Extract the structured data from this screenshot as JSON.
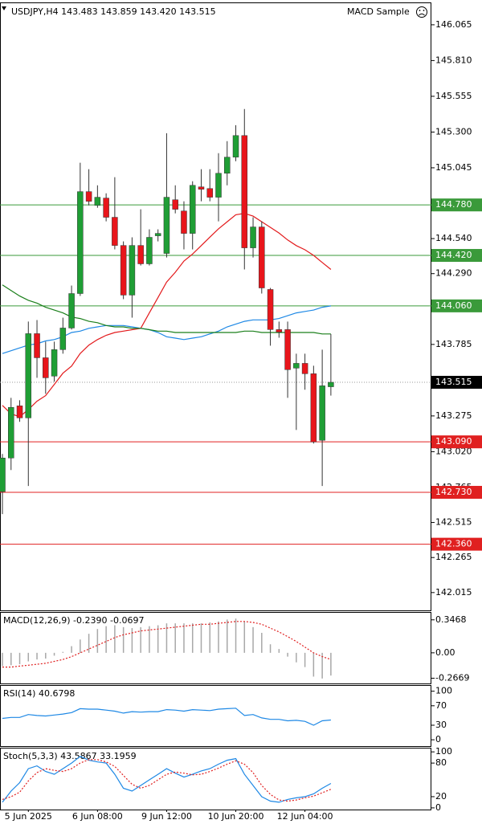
{
  "header": {
    "symbol_line": "USDJPY,H4  143.483 143.859 143.420 143.515",
    "indicator_name": "MACD Sample"
  },
  "chart_data": [
    {
      "type": "candlestick",
      "up_color": "#1f9e35",
      "down_color": "#e8151b",
      "categories": [
        null,
        null,
        null,
        "5 Jun 2025",
        null,
        null,
        null,
        null,
        null,
        null,
        null,
        "6 Jun 08:00",
        null,
        null,
        null,
        null,
        null,
        null,
        null,
        "9 Jun 12:00",
        null,
        null,
        null,
        null,
        null,
        null,
        null,
        "10 Jun 20:00",
        null,
        null,
        null,
        null,
        null,
        null,
        null,
        "12 Jun 04:00",
        null,
        null,
        null
      ],
      "open": [
        142.735,
        142.975,
        143.347,
        143.261,
        143.862,
        143.69,
        143.559,
        143.748,
        143.902,
        144.148,
        144.875,
        144.777,
        144.829,
        144.692,
        144.491,
        144.137,
        144.491,
        144.36,
        144.56,
        144.434,
        144.817,
        144.737,
        144.577,
        144.909,
        144.897,
        144.835,
        145.006,
        145.121,
        145.275,
        144.474,
        144.623,
        144.177,
        143.891,
        143.891,
        143.616,
        143.65,
        143.576,
        143.101,
        143.483
      ],
      "high": [
        143.004,
        143.404,
        143.387,
        143.948,
        143.959,
        143.805,
        143.805,
        143.976,
        144.205,
        145.081,
        145.035,
        144.92,
        144.863,
        144.978,
        144.52,
        144.549,
        144.749,
        144.606,
        144.606,
        145.292,
        144.92,
        144.806,
        144.949,
        145.035,
        145.035,
        145.149,
        145.235,
        145.349,
        145.464,
        144.692,
        144.663,
        144.188,
        143.948,
        143.948,
        143.719,
        143.719,
        143.633,
        143.748,
        143.859
      ],
      "low": [
        142.575,
        142.889,
        143.233,
        142.775,
        143.547,
        143.433,
        143.519,
        143.719,
        143.891,
        144.131,
        144.777,
        144.76,
        144.663,
        144.463,
        144.108,
        143.976,
        144.348,
        144.348,
        144.52,
        144.405,
        144.72,
        144.463,
        144.463,
        144.806,
        144.806,
        144.663,
        144.92,
        145.092,
        144.32,
        144.405,
        144.148,
        143.776,
        143.833,
        143.404,
        143.175,
        143.462,
        143.078,
        142.775,
        143.42
      ],
      "close": [
        142.975,
        143.336,
        143.261,
        143.862,
        143.69,
        143.547,
        143.748,
        143.902,
        144.148,
        144.875,
        144.806,
        144.835,
        144.692,
        144.491,
        144.137,
        144.491,
        144.36,
        144.549,
        144.577,
        144.835,
        144.749,
        144.577,
        144.92,
        144.892,
        144.835,
        145.006,
        145.121,
        145.275,
        144.474,
        144.623,
        144.188,
        143.891,
        143.873,
        143.605,
        143.65,
        143.576,
        143.09,
        143.49,
        143.515
      ],
      "moving_averages": [
        {
          "color": "#e31a1c",
          "values": [
            143.35,
            143.29,
            143.27,
            143.32,
            143.38,
            143.42,
            143.5,
            143.58,
            143.63,
            143.72,
            143.78,
            143.82,
            143.85,
            143.87,
            143.88,
            143.89,
            143.9,
            144.01,
            144.12,
            144.23,
            144.3,
            144.38,
            144.43,
            144.49,
            144.55,
            144.61,
            144.66,
            144.71,
            144.72,
            144.7,
            144.66,
            144.62,
            144.58,
            144.53,
            144.49,
            144.46,
            144.42,
            144.37,
            144.32
          ]
        },
        {
          "color": "#1e88e5",
          "values": [
            143.72,
            143.74,
            143.76,
            143.78,
            143.79,
            143.81,
            143.82,
            143.84,
            143.87,
            143.88,
            143.9,
            143.91,
            143.92,
            143.92,
            143.92,
            143.91,
            143.9,
            143.89,
            143.87,
            143.84,
            143.83,
            143.82,
            143.83,
            143.84,
            143.86,
            143.88,
            143.91,
            143.93,
            143.95,
            143.96,
            143.96,
            143.96,
            143.97,
            143.99,
            144.01,
            144.02,
            144.03,
            144.05,
            144.06
          ]
        },
        {
          "color": "#1a7f1a",
          "values": [
            144.21,
            144.17,
            144.13,
            144.1,
            144.08,
            144.05,
            144.03,
            144.01,
            143.98,
            143.97,
            143.95,
            143.94,
            143.92,
            143.91,
            143.91,
            143.9,
            143.9,
            143.89,
            143.88,
            143.88,
            143.87,
            143.87,
            143.87,
            143.87,
            143.87,
            143.87,
            143.87,
            143.87,
            143.88,
            143.88,
            143.87,
            143.87,
            143.87,
            143.87,
            143.87,
            143.87,
            143.87,
            143.86,
            143.86
          ]
        }
      ],
      "levels": [
        {
          "value": 144.78,
          "label": "144.780",
          "color": "#3a9a3a"
        },
        {
          "value": 144.42,
          "label": "144.420",
          "color": "#3a9a3a"
        },
        {
          "value": 144.06,
          "label": "144.060",
          "color": "#3a9a3a"
        },
        {
          "value": 143.09,
          "label": "143.090",
          "color": "#e02020"
        },
        {
          "value": 142.73,
          "label": "142.730",
          "color": "#e02020"
        },
        {
          "value": 142.36,
          "label": "142.360",
          "color": "#e02020"
        }
      ],
      "current_price": {
        "value": 143.515,
        "label": "143.515",
        "color": "#000000"
      },
      "ylim": [
        141.888,
        146.219
      ],
      "yticks": [
        146.065,
        {
          "value": 145.81,
          "label": "145.810"
        },
        145.555,
        {
          "value": 145.3,
          "label": "145.300"
        },
        145.045,
        {
          "value": 144.54,
          "label": "144.540"
        },
        {
          "value": 144.29,
          "label": "144.290"
        },
        143.785,
        143.275,
        {
          "value": 143.02,
          "label": "143.020"
        },
        142.765,
        142.515,
        142.265,
        142.015
      ]
    },
    {
      "type": "macd",
      "title": "MACD(12,26,9) -0.2390 -0.0697",
      "series": [
        {
          "style": "bar",
          "color": "#a8a8a8",
          "values": [
            -0.14,
            -0.13,
            -0.12,
            -0.09,
            -0.07,
            -0.06,
            -0.03,
            0.01,
            0.07,
            0.14,
            0.2,
            0.25,
            0.28,
            0.29,
            0.27,
            0.26,
            0.27,
            0.28,
            0.29,
            0.31,
            0.31,
            0.31,
            0.31,
            0.31,
            0.32,
            0.33,
            0.35,
            0.36,
            0.33,
            0.27,
            0.21,
            0.09,
            0.04,
            -0.04,
            -0.1,
            -0.15,
            -0.25,
            -0.27,
            -0.239
          ]
        },
        {
          "style": "dotted-line",
          "color": "#e02020",
          "values": [
            -0.15,
            -0.15,
            -0.14,
            -0.13,
            -0.12,
            -0.11,
            -0.09,
            -0.07,
            -0.04,
            0.0,
            0.04,
            0.08,
            0.12,
            0.16,
            0.19,
            0.21,
            0.23,
            0.24,
            0.25,
            0.26,
            0.27,
            0.28,
            0.29,
            0.3,
            0.3,
            0.31,
            0.32,
            0.33,
            0.33,
            0.32,
            0.3,
            0.26,
            0.22,
            0.17,
            0.12,
            0.06,
            0.0,
            -0.04,
            -0.0697
          ]
        }
      ],
      "ylim": [
        -0.322,
        0.421
      ],
      "yticks": [
        0.3468,
        {
          "value": 0,
          "label": "0.00"
        },
        -0.2669
      ]
    },
    {
      "type": "oscillator",
      "title": "RSI(14) 40.6798",
      "series": [
        {
          "style": "line",
          "color": "#1e88e5",
          "values": [
            44,
            46,
            46,
            52,
            50,
            49,
            51,
            53,
            56,
            64,
            63,
            63,
            61,
            59,
            55,
            58,
            57,
            58,
            58,
            62,
            61,
            59,
            62,
            61,
            60,
            63,
            64,
            65,
            50,
            52,
            45,
            42,
            42,
            39,
            40,
            38,
            30,
            39,
            40.6798
          ]
        }
      ],
      "ylim": [
        -13,
        111
      ],
      "yticks": [
        100,
        70,
        30,
        0
      ]
    },
    {
      "type": "oscillator",
      "title": "Stoch(5,3,3) 43.5867 33.1959",
      "series": [
        {
          "style": "line",
          "color": "#1e88e5",
          "values": [
            10,
            30,
            45,
            70,
            75,
            65,
            60,
            70,
            80,
            92,
            85,
            82,
            80,
            60,
            35,
            30,
            40,
            50,
            60,
            70,
            62,
            55,
            60,
            66,
            70,
            78,
            85,
            88,
            60,
            40,
            20,
            12,
            10,
            15,
            18,
            20,
            25,
            35,
            43.5867
          ]
        },
        {
          "style": "dotted-line",
          "color": "#e02020",
          "values": [
            15,
            20,
            28,
            48,
            63,
            70,
            67,
            65,
            70,
            80,
            86,
            86,
            82,
            74,
            58,
            42,
            35,
            40,
            50,
            60,
            64,
            62,
            59,
            60,
            65,
            71,
            78,
            84,
            78,
            63,
            40,
            24,
            14,
            12,
            14,
            18,
            21,
            27,
            33.1959
          ]
        }
      ],
      "ylim": [
        -3,
        106
      ],
      "yticks": [
        100,
        80,
        20,
        0
      ]
    }
  ]
}
